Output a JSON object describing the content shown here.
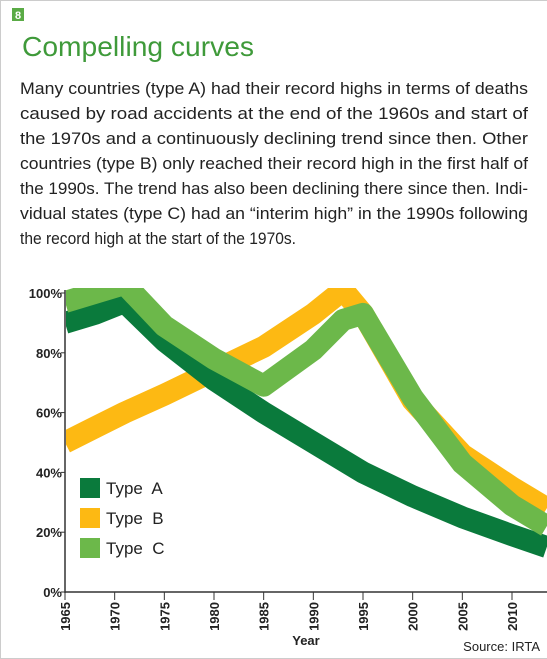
{
  "badge": "8",
  "header": {
    "title": "Compelling curves"
  },
  "body": {
    "lines": [
      "Many countries (type A) had their record highs in terms of deaths",
      "caused by road accidents at the end of the 1960s and start of",
      "the 1970s and a continuously declining trend since then. Other",
      "countries (type B) only reached their record high in the first half of",
      "the 1990s. The trend has also been declining there since then. Indi-",
      "vidual states (type C) had an “interim high” in the 1990s following",
      "the record high at the start of the 1970s."
    ]
  },
  "chart_data": {
    "type": "line",
    "x": [
      1965,
      1968,
      1971,
      1975,
      1980,
      1985,
      1990,
      1993,
      1995,
      2000,
      2005,
      2010,
      2013.5
    ],
    "series": [
      {
        "name": "Type  B",
        "color": "#fdb913",
        "values": [
          50,
          55,
          60,
          66,
          74,
          82,
          93,
          101,
          93,
          64,
          46,
          35,
          28
        ]
      },
      {
        "name": "Type  A",
        "color": "#0a7a3c",
        "values": [
          90,
          93,
          97,
          84,
          71,
          60,
          50,
          44,
          40,
          32,
          25,
          19,
          15
        ]
      },
      {
        "name": "Type  C",
        "color": "#6cb84a",
        "values": [
          97,
          100,
          103,
          89,
          78,
          69,
          81,
          91,
          93,
          65,
          43,
          29,
          22
        ]
      }
    ],
    "legend_order": [
      "Type  A",
      "Type  B",
      "Type  C"
    ],
    "legend": "lower left",
    "xlim": [
      1965,
      2013.5
    ],
    "xticks": [
      1965,
      1970,
      1975,
      1980,
      1985,
      1990,
      1995,
      2000,
      2005,
      2010
    ],
    "ylim": [
      0,
      100
    ],
    "yticks": [
      {
        "value": 0,
        "label": "0%"
      },
      {
        "value": 20,
        "label": "20%"
      },
      {
        "value": 40,
        "label": "40%"
      },
      {
        "value": 60,
        "label": "60%"
      },
      {
        "value": 80,
        "label": "80%"
      },
      {
        "value": 100,
        "label": "100%"
      }
    ],
    "xlabel": "Year",
    "source": "Source: IRTA"
  }
}
